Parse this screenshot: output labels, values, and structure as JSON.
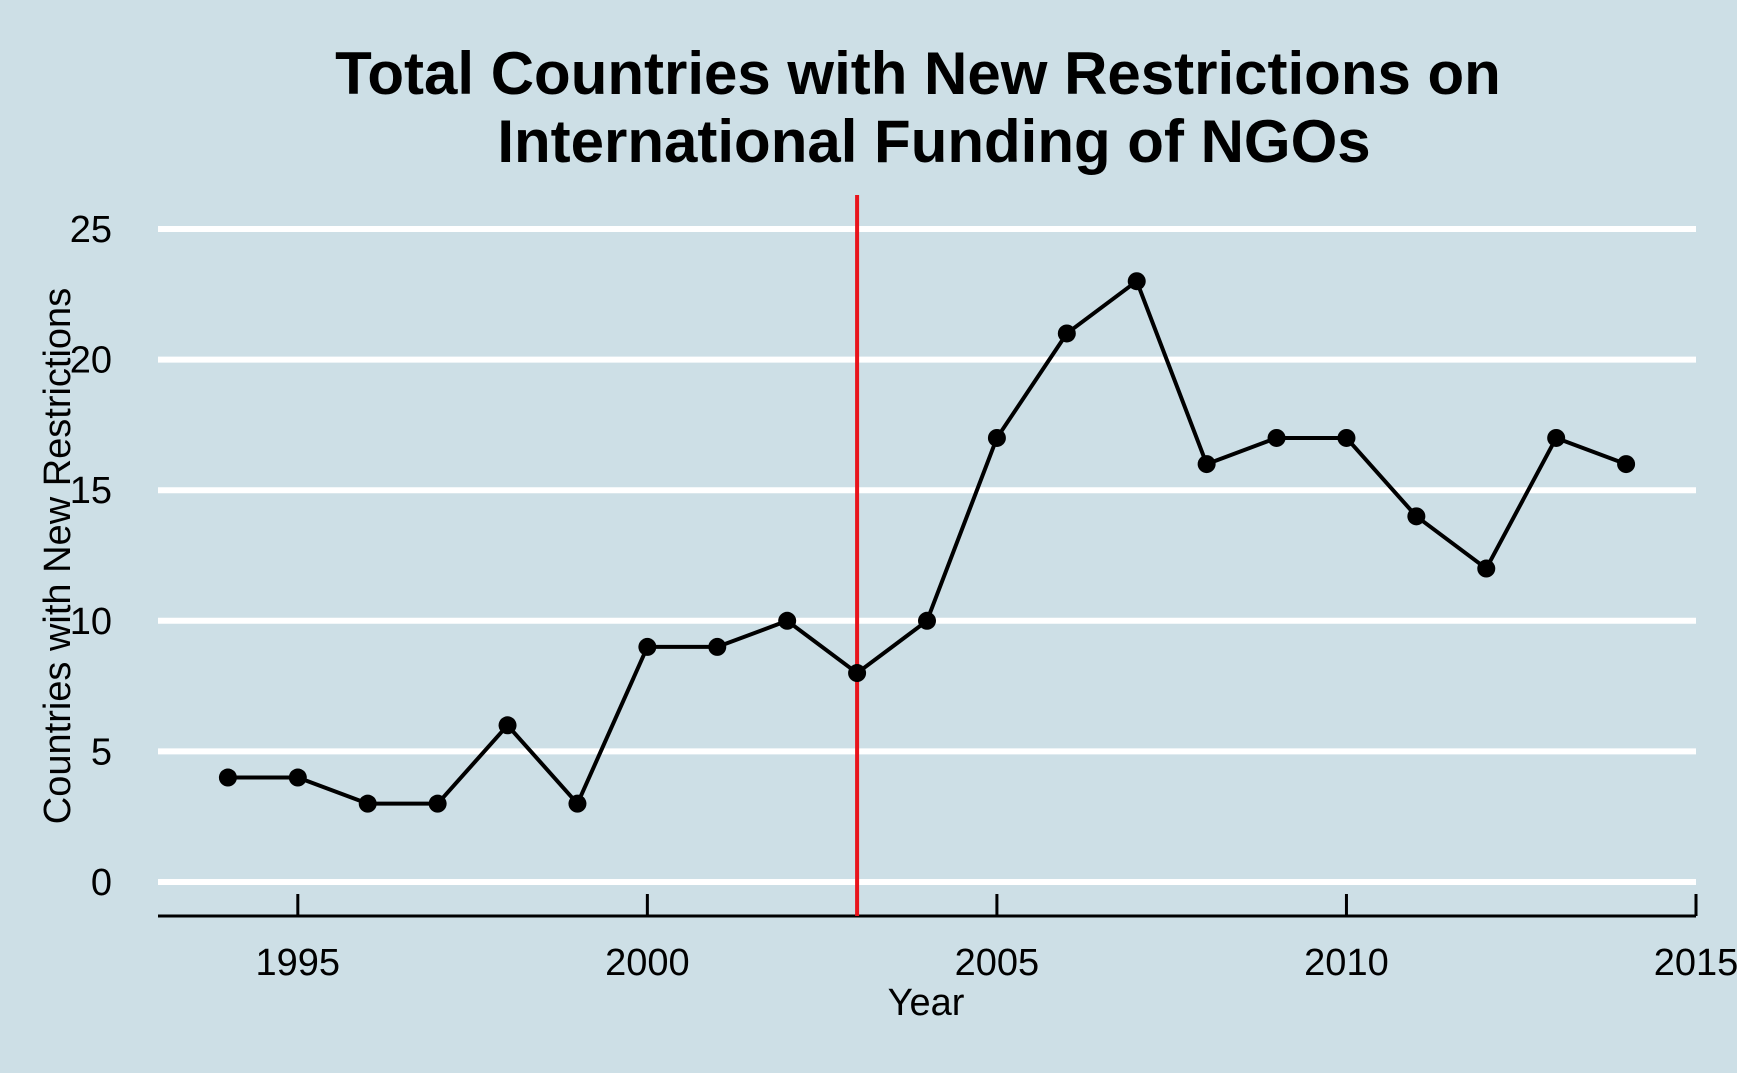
{
  "chart_data": {
    "type": "line",
    "title": [
      "Total Countries with New Restrictions on",
      "International Funding of NGOs"
    ],
    "xlabel": "Year",
    "ylabel": "Countries with New Restrictions",
    "xlim": [
      1993,
      2015
    ],
    "ylim": [
      -1.3,
      26.3
    ],
    "x_ticks": [
      1995,
      2000,
      2005,
      2010,
      2015
    ],
    "y_ticks": [
      0,
      5,
      10,
      15,
      20,
      25
    ],
    "grid": "horizontal",
    "reference_line": {
      "x": 2003,
      "color": "#e8141c"
    },
    "series": [
      {
        "color": "#000000",
        "x": [
          1994,
          1995,
          1996,
          1997,
          1998,
          1999,
          2000,
          2001,
          2002,
          2003,
          2004,
          2005,
          2006,
          2007,
          2008,
          2009,
          2010,
          2011,
          2012,
          2013,
          2014
        ],
        "y": [
          4,
          4,
          3,
          3,
          6,
          3,
          9,
          9,
          10,
          8,
          10,
          17,
          21,
          23,
          16,
          17,
          17,
          14,
          12,
          17,
          16
        ]
      }
    ],
    "colors": {
      "background": "#cddfe6",
      "grid": "#ffffff",
      "axis": "#000000"
    }
  }
}
